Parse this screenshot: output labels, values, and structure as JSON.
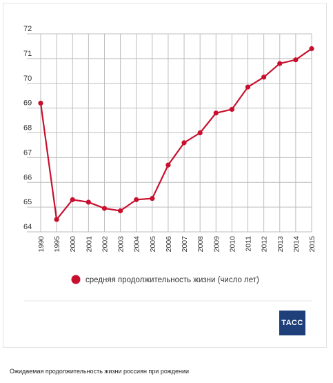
{
  "chart_data": {
    "type": "line",
    "x": [
      "1990",
      "1995",
      "2000",
      "2001",
      "2002",
      "2003",
      "2004",
      "2005",
      "2006",
      "2007",
      "2008",
      "2009",
      "2010",
      "2011",
      "2012",
      "2013",
      "2014",
      "2015"
    ],
    "series": [
      {
        "name": "средняя продолжительность жизни (число лет)",
        "values": [
          69.2,
          64.5,
          65.3,
          65.2,
          64.95,
          64.85,
          65.3,
          65.35,
          66.7,
          67.6,
          68.0,
          68.8,
          68.95,
          69.85,
          70.25,
          70.8,
          70.95,
          71.4
        ]
      }
    ],
    "ylim": [
      64,
      72
    ],
    "yticks": [
      "64",
      "65",
      "66",
      "67",
      "68",
      "69",
      "70",
      "71",
      "72"
    ],
    "grid": true,
    "legend_position": "bottom",
    "colors": {
      "line": "#c8102e",
      "grid": "#bdbdbd"
    }
  },
  "brand": {
    "logo_text": "ТАСС",
    "logo_color": "#1f3f7a"
  },
  "caption": "Ожидаемая продолжительность жизни россиян при рождении"
}
